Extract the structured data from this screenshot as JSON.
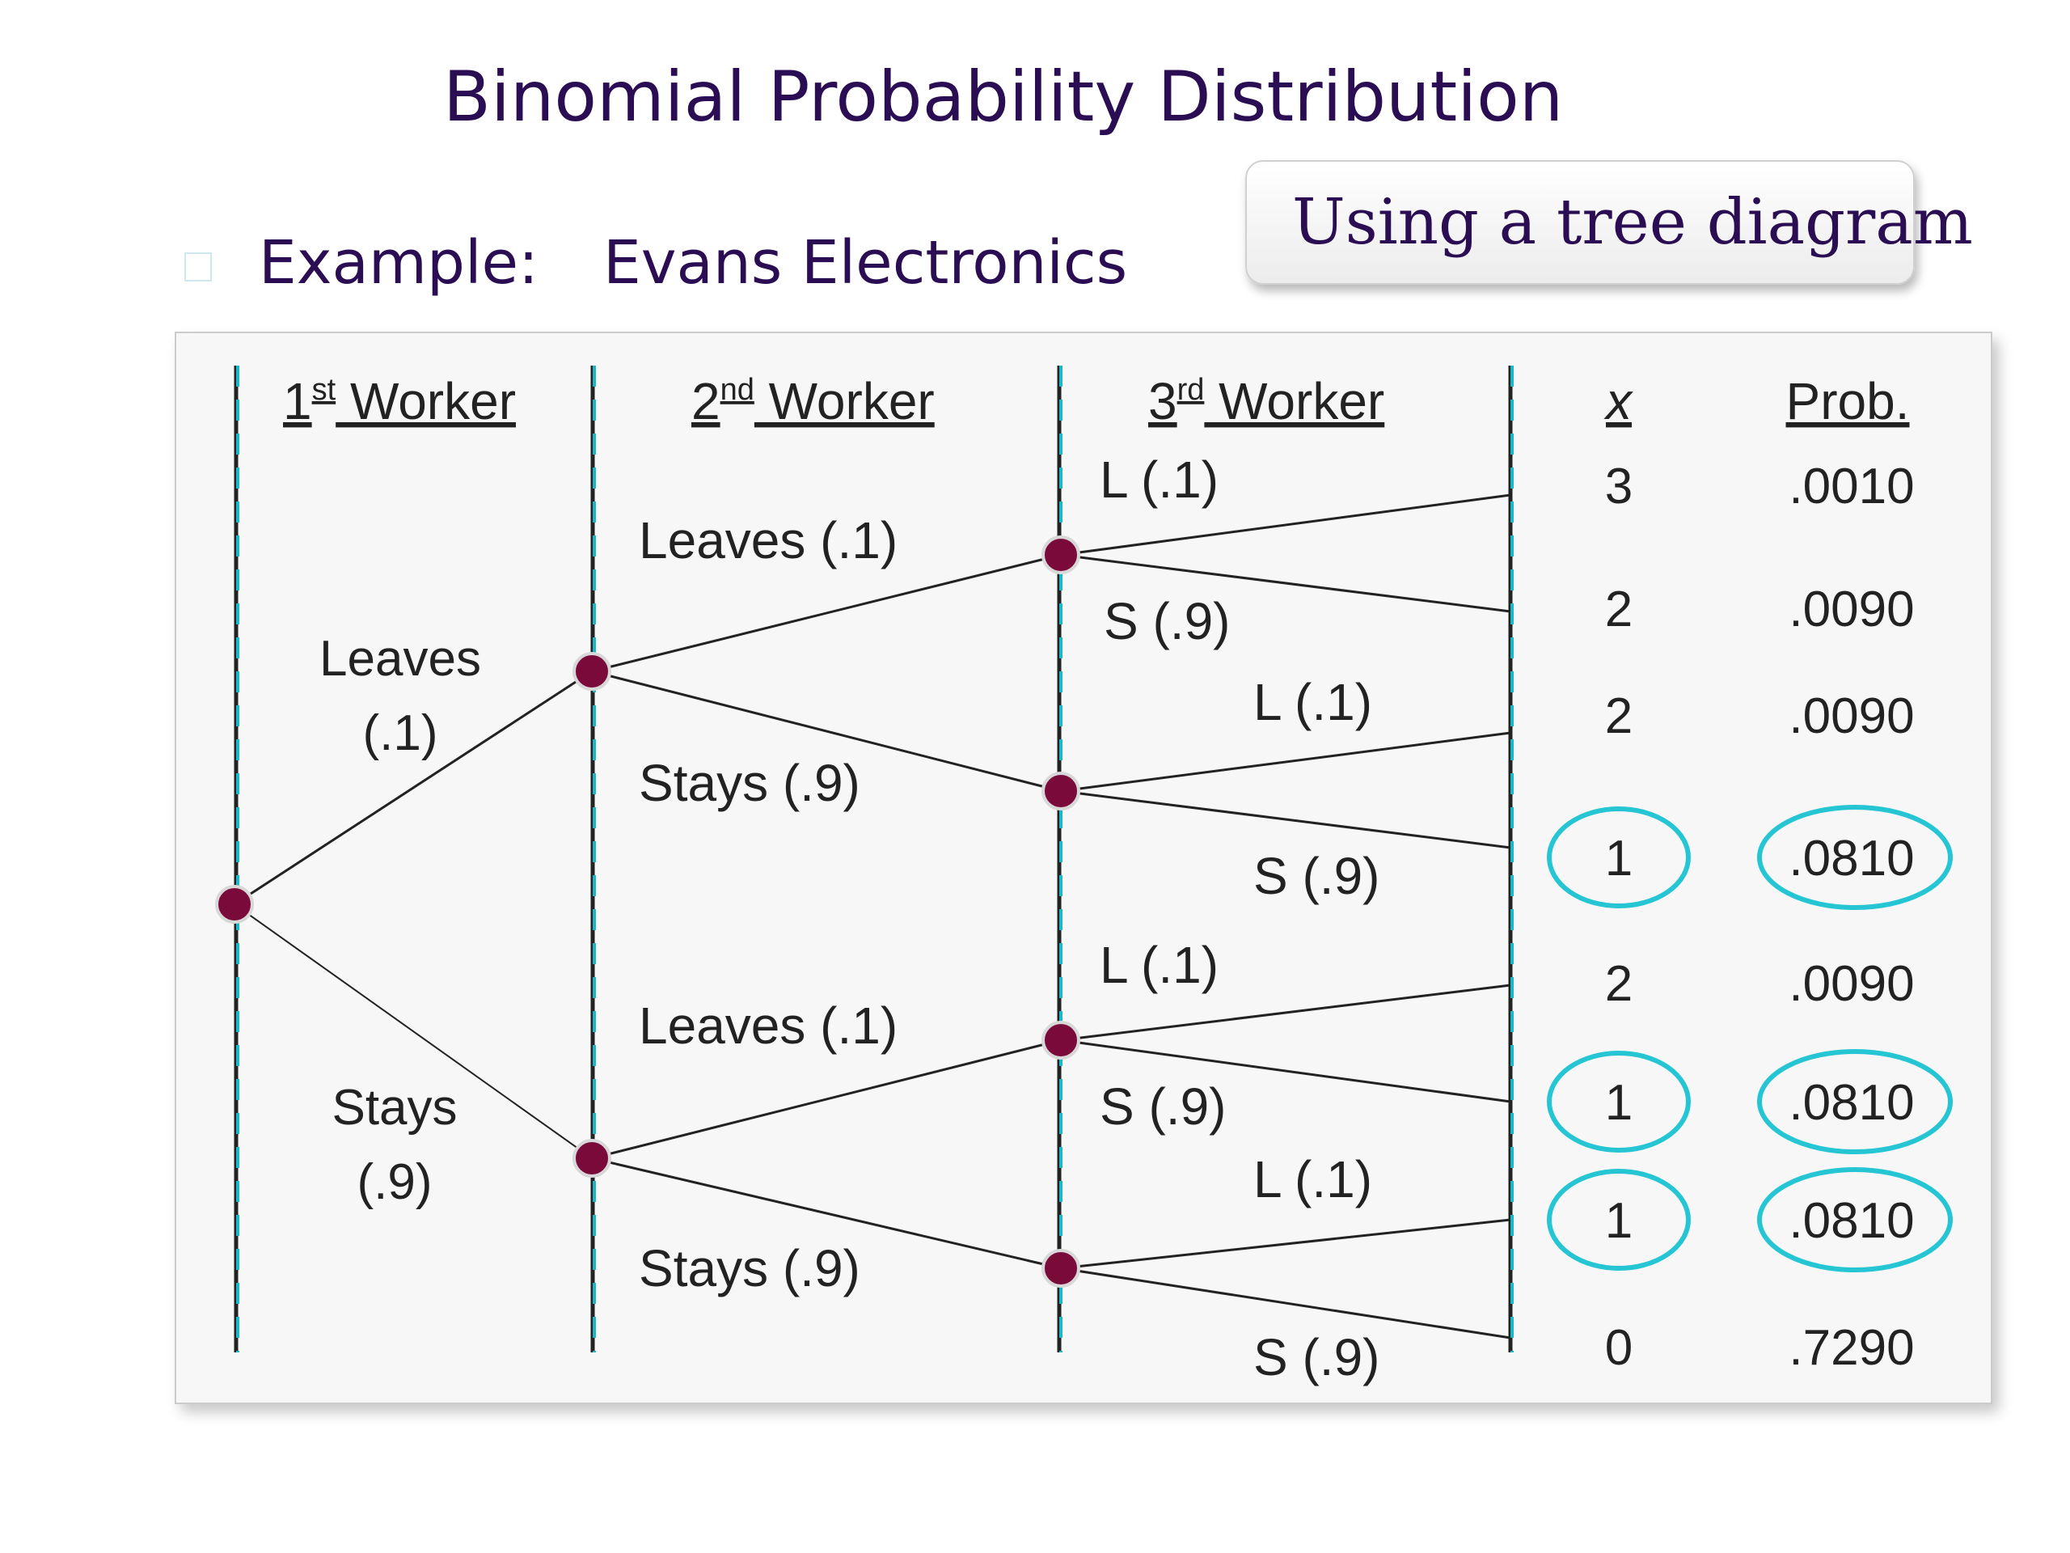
{
  "title": "Binomial Probability Distribution",
  "example": {
    "label": "Example:",
    "company": "Evans Electronics"
  },
  "callout": "Using a tree diagram",
  "headers": {
    "w1": "1",
    "w1_sup": "st",
    "w2": "2",
    "w2_sup": "nd",
    "w3": "3",
    "w3_sup": "rd",
    "worker": "Worker",
    "x": "x",
    "prob": "Prob."
  },
  "stage1": [
    {
      "name": "Leaves",
      "p": "(.1)"
    },
    {
      "name": "Stays",
      "p": "(.9)"
    }
  ],
  "stage2": [
    "Leaves (.1)",
    "Stays (.9)",
    "Leaves (.1)",
    "Stays (.9)"
  ],
  "stage3": [
    "L (.1)",
    "S (.9)",
    "L (.1)",
    "S (.9)",
    "L (.1)",
    "S (.9)",
    "L (.1)",
    "S (.9)"
  ],
  "outcomes": [
    {
      "x": "3",
      "prob": ".0010",
      "circled": false
    },
    {
      "x": "2",
      "prob": ".0090",
      "circled": false
    },
    {
      "x": "2",
      "prob": ".0090",
      "circled": false
    },
    {
      "x": "1",
      "prob": ".0810",
      "circled": true
    },
    {
      "x": "2",
      "prob": ".0090",
      "circled": false
    },
    {
      "x": "1",
      "prob": ".0810",
      "circled": true
    },
    {
      "x": "1",
      "prob": ".0810",
      "circled": true
    },
    {
      "x": "0",
      "prob": ".7290",
      "circled": false
    }
  ],
  "colors": {
    "node": "#7a0a3a",
    "divider": "#1cb7c7",
    "highlight": "#26c5d4",
    "title": "#2a0d52"
  }
}
